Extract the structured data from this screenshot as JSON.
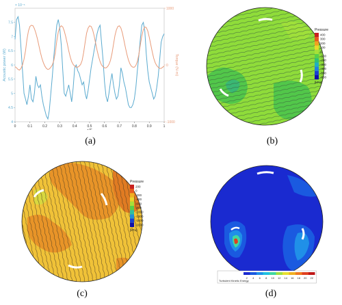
{
  "panels": {
    "a": {
      "caption": "(a)",
      "chart_data": {
        "type": "line",
        "xlabel": "t/T",
        "ylabel_left": "Acoustic power (W)",
        "ylabel_right": "Torque (N·m)",
        "left_exponent": "× 10⁻⁵",
        "xlim": [
          0,
          1
        ],
        "ylim_left": [
          4,
          8
        ],
        "ylim_right": [
          -1000,
          1000
        ],
        "x_ticks": [
          "0",
          "0.1",
          "0.2",
          "0.3",
          "0.4",
          "0.5",
          "0.6",
          "0.7",
          "0.8",
          "0.9",
          "1"
        ],
        "left_ticks": [
          "4",
          "4.5",
          "5",
          "5.5",
          "6",
          "6.5",
          "7",
          "7.5"
        ],
        "right_ticks": [
          "1000",
          "0",
          "-1000"
        ],
        "series": [
          {
            "axis": "left",
            "color": "#5aaacf",
            "x": [
              0,
              0.01,
              0.02,
              0.03,
              0.04,
              0.05,
              0.06,
              0.07,
              0.08,
              0.09,
              0.1,
              0.11,
              0.12,
              0.13,
              0.14,
              0.15,
              0.16,
              0.17,
              0.18,
              0.19,
              0.2,
              0.21,
              0.22,
              0.23,
              0.24,
              0.25,
              0.26,
              0.27,
              0.28,
              0.29,
              0.3,
              0.31,
              0.32,
              0.33,
              0.34,
              0.35,
              0.36,
              0.37,
              0.38,
              0.39,
              0.4,
              0.41,
              0.42,
              0.43,
              0.44,
              0.45,
              0.46,
              0.47,
              0.48,
              0.49,
              0.5,
              0.51,
              0.52,
              0.53,
              0.54,
              0.55,
              0.56,
              0.57,
              0.58,
              0.59,
              0.6,
              0.61,
              0.62,
              0.63,
              0.64,
              0.65,
              0.66,
              0.67,
              0.68,
              0.69,
              0.7,
              0.71,
              0.72,
              0.73,
              0.74,
              0.75,
              0.76,
              0.77,
              0.78,
              0.79,
              0.8,
              0.81,
              0.82,
              0.83,
              0.84,
              0.85,
              0.86,
              0.87,
              0.88,
              0.89,
              0.9,
              0.91,
              0.92,
              0.93,
              0.94,
              0.95,
              0.96,
              0.97,
              0.98,
              0.99,
              1
            ],
            "values": [
              6.9,
              7.6,
              7.7,
              7.4,
              6.6,
              5.8,
              5.0,
              4.8,
              4.6,
              4.9,
              5.3,
              4.8,
              4.7,
              5.0,
              5.6,
              5.3,
              5.2,
              5.3,
              4.9,
              4.6,
              4.4,
              4.2,
              4.1,
              4.4,
              5.0,
              5.6,
              6.3,
              6.9,
              7.4,
              7.6,
              7.3,
              6.7,
              5.8,
              5.0,
              4.9,
              5.1,
              5.3,
              5.0,
              4.7,
              5.2,
              5.9,
              6.0,
              5.8,
              5.7,
              5.5,
              5.3,
              5.4,
              5.0,
              4.8,
              5.1,
              5.5,
              5.9,
              6.2,
              6.5,
              6.8,
              7.1,
              7.3,
              7.4,
              6.8,
              6.2,
              5.4,
              4.9,
              4.7,
              5.0,
              5.4,
              5.7,
              5.3,
              5.0,
              4.8,
              4.9,
              5.3,
              5.9,
              5.7,
              5.4,
              5.2,
              4.9,
              4.6,
              4.5,
              4.5,
              4.6,
              4.8,
              5.2,
              5.8,
              6.3,
              6.9,
              7.4,
              7.5,
              7.2,
              6.4,
              5.8,
              5.4,
              5.2,
              5.0,
              4.8,
              4.9,
              5.2,
              5.6,
              6.2,
              6.8,
              7.0,
              7.1
            ]
          },
          {
            "axis": "right",
            "color": "#e89a78",
            "x": [
              0,
              0.01,
              0.02,
              0.03,
              0.04,
              0.05,
              0.06,
              0.07,
              0.08,
              0.09,
              0.1,
              0.11,
              0.12,
              0.13,
              0.14,
              0.15,
              0.16,
              0.17,
              0.18,
              0.19,
              0.2,
              0.21,
              0.22,
              0.23,
              0.24,
              0.25,
              0.26,
              0.27,
              0.28,
              0.29,
              0.3,
              0.31,
              0.32,
              0.33,
              0.34,
              0.35,
              0.36,
              0.37,
              0.38,
              0.39,
              0.4,
              0.41,
              0.42,
              0.43,
              0.44,
              0.45,
              0.46,
              0.47,
              0.48,
              0.49,
              0.5,
              0.51,
              0.52,
              0.53,
              0.54,
              0.55,
              0.56,
              0.57,
              0.58,
              0.59,
              0.6,
              0.61,
              0.62,
              0.63,
              0.64,
              0.65,
              0.66,
              0.67,
              0.68,
              0.69,
              0.7,
              0.71,
              0.72,
              0.73,
              0.74,
              0.75,
              0.76,
              0.77,
              0.78,
              0.79,
              0.8,
              0.81,
              0.82,
              0.83,
              0.84,
              0.85,
              0.86,
              0.87,
              0.88,
              0.89,
              0.9,
              0.91,
              0.92,
              0.93,
              0.94,
              0.95,
              0.96,
              0.97,
              0.98,
              0.99,
              1
            ],
            "values": [
              -30,
              -50,
              -80,
              -90,
              -60,
              0,
              100,
              250,
              450,
              600,
              680,
              700,
              690,
              640,
              560,
              460,
              340,
              220,
              120,
              40,
              -20,
              -60,
              -80,
              -70,
              -40,
              0,
              80,
              220,
              420,
              580,
              660,
              690,
              670,
              600,
              500,
              380,
              250,
              140,
              60,
              10,
              -20,
              -40,
              -40,
              -20,
              10,
              80,
              220,
              400,
              560,
              650,
              690,
              680,
              620,
              520,
              390,
              260,
              150,
              60,
              0,
              -30,
              -50,
              -50,
              -30,
              10,
              80,
              200,
              360,
              520,
              620,
              680,
              690,
              650,
              560,
              440,
              310,
              190,
              90,
              20,
              -20,
              -40,
              -40,
              -10,
              60,
              180,
              350,
              510,
              620,
              670,
              660,
              600,
              490,
              360,
              230,
              120,
              40,
              -10,
              -40,
              -60,
              -60,
              -40,
              -20
            ]
          }
        ]
      }
    },
    "b": {
      "caption": "(b)",
      "legend": {
        "title": "Pressure",
        "unit": "[kPa]",
        "levels": [
          "400",
          "300",
          "200",
          "100",
          "0",
          "-100",
          "-200",
          "-300",
          "-400",
          "-500",
          "-600"
        ],
        "colors": [
          "#c82020",
          "#e65a1e",
          "#f0a020",
          "#e8d82a",
          "#a8e038",
          "#58d048",
          "#30c078",
          "#20b0c0",
          "#2080e0",
          "#1a40d0",
          "#1010a8"
        ]
      }
    },
    "c": {
      "caption": "(c)",
      "legend": {
        "title": "Pressure",
        "unit": "[kPa]",
        "levels": [
          "200",
          "0",
          "-200",
          "-400",
          "-600",
          "-800",
          "-1000",
          "-1200",
          "-1400",
          "-1600"
        ],
        "colors": [
          "#c82020",
          "#e65a1e",
          "#f0b020",
          "#e8d82a",
          "#a8e038",
          "#58d048",
          "#30c0a0",
          "#2090d8",
          "#1a40d0",
          "#1010a8"
        ]
      }
    },
    "d": {
      "caption": "(d)",
      "legend": {
        "title": "Turbulent Kinetic Energy",
        "levels": [
          "2",
          "4",
          "6",
          "8",
          "10",
          "12",
          "14",
          "16",
          "18",
          "20",
          "22"
        ],
        "colors": [
          "#1a2ad0",
          "#1a5ae0",
          "#2090e8",
          "#20c0e0",
          "#40d8a0",
          "#a0e040",
          "#e8e030",
          "#f0b020",
          "#f07a20",
          "#e04020",
          "#c01818"
        ]
      }
    }
  }
}
